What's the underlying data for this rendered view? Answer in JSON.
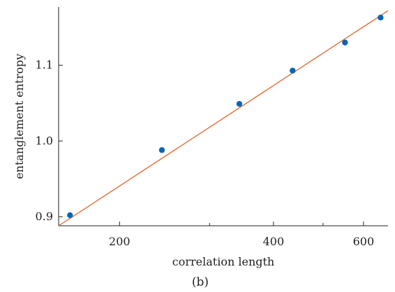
{
  "chart_data": {
    "type": "scatter",
    "title": "",
    "xlabel": "correlation length",
    "ylabel": "entanglement entropy",
    "caption": "(b)",
    "x_scale": "log",
    "xlim": [
      152,
      670
    ],
    "ylim": [
      0.888,
      1.177
    ],
    "x_ticks": [
      200,
      400,
      600
    ],
    "x_tick_labels": [
      "200",
      "400",
      "600"
    ],
    "x_minor_ticks": [
      300,
      500
    ],
    "y_ticks": [
      0.9,
      1.0,
      1.1
    ],
    "y_tick_labels": [
      "0.9",
      "1.0",
      "1.1"
    ],
    "grid": false,
    "legend": "none",
    "series": [
      {
        "values_x": [
          160,
          242,
          343,
          436,
          552,
          648
        ],
        "values_y": [
          0.902,
          0.988,
          1.049,
          1.093,
          1.13,
          1.163
        ],
        "color": "#0a66b3"
      }
    ],
    "fit_line": {
      "x": [
        152,
        670
      ],
      "y": [
        0.888,
        1.172
      ],
      "color": "#e0622a"
    }
  }
}
